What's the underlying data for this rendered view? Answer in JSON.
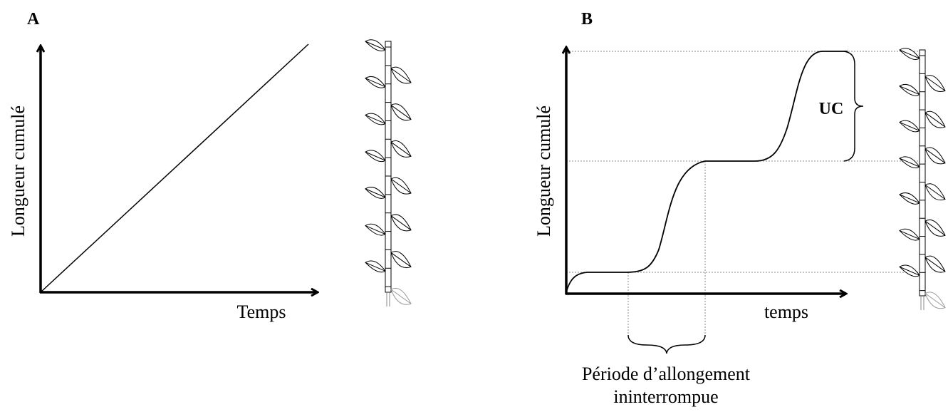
{
  "panels": [
    {
      "label": "A",
      "y_label": "Longueur cumulé",
      "x_label": "Temps"
    },
    {
      "label": "B",
      "y_label": "Longueur cumulé",
      "x_label": "temps",
      "unit_label": "UC",
      "period_label": [
        "Période d’allongement",
        "ininterrompue"
      ]
    }
  ]
}
